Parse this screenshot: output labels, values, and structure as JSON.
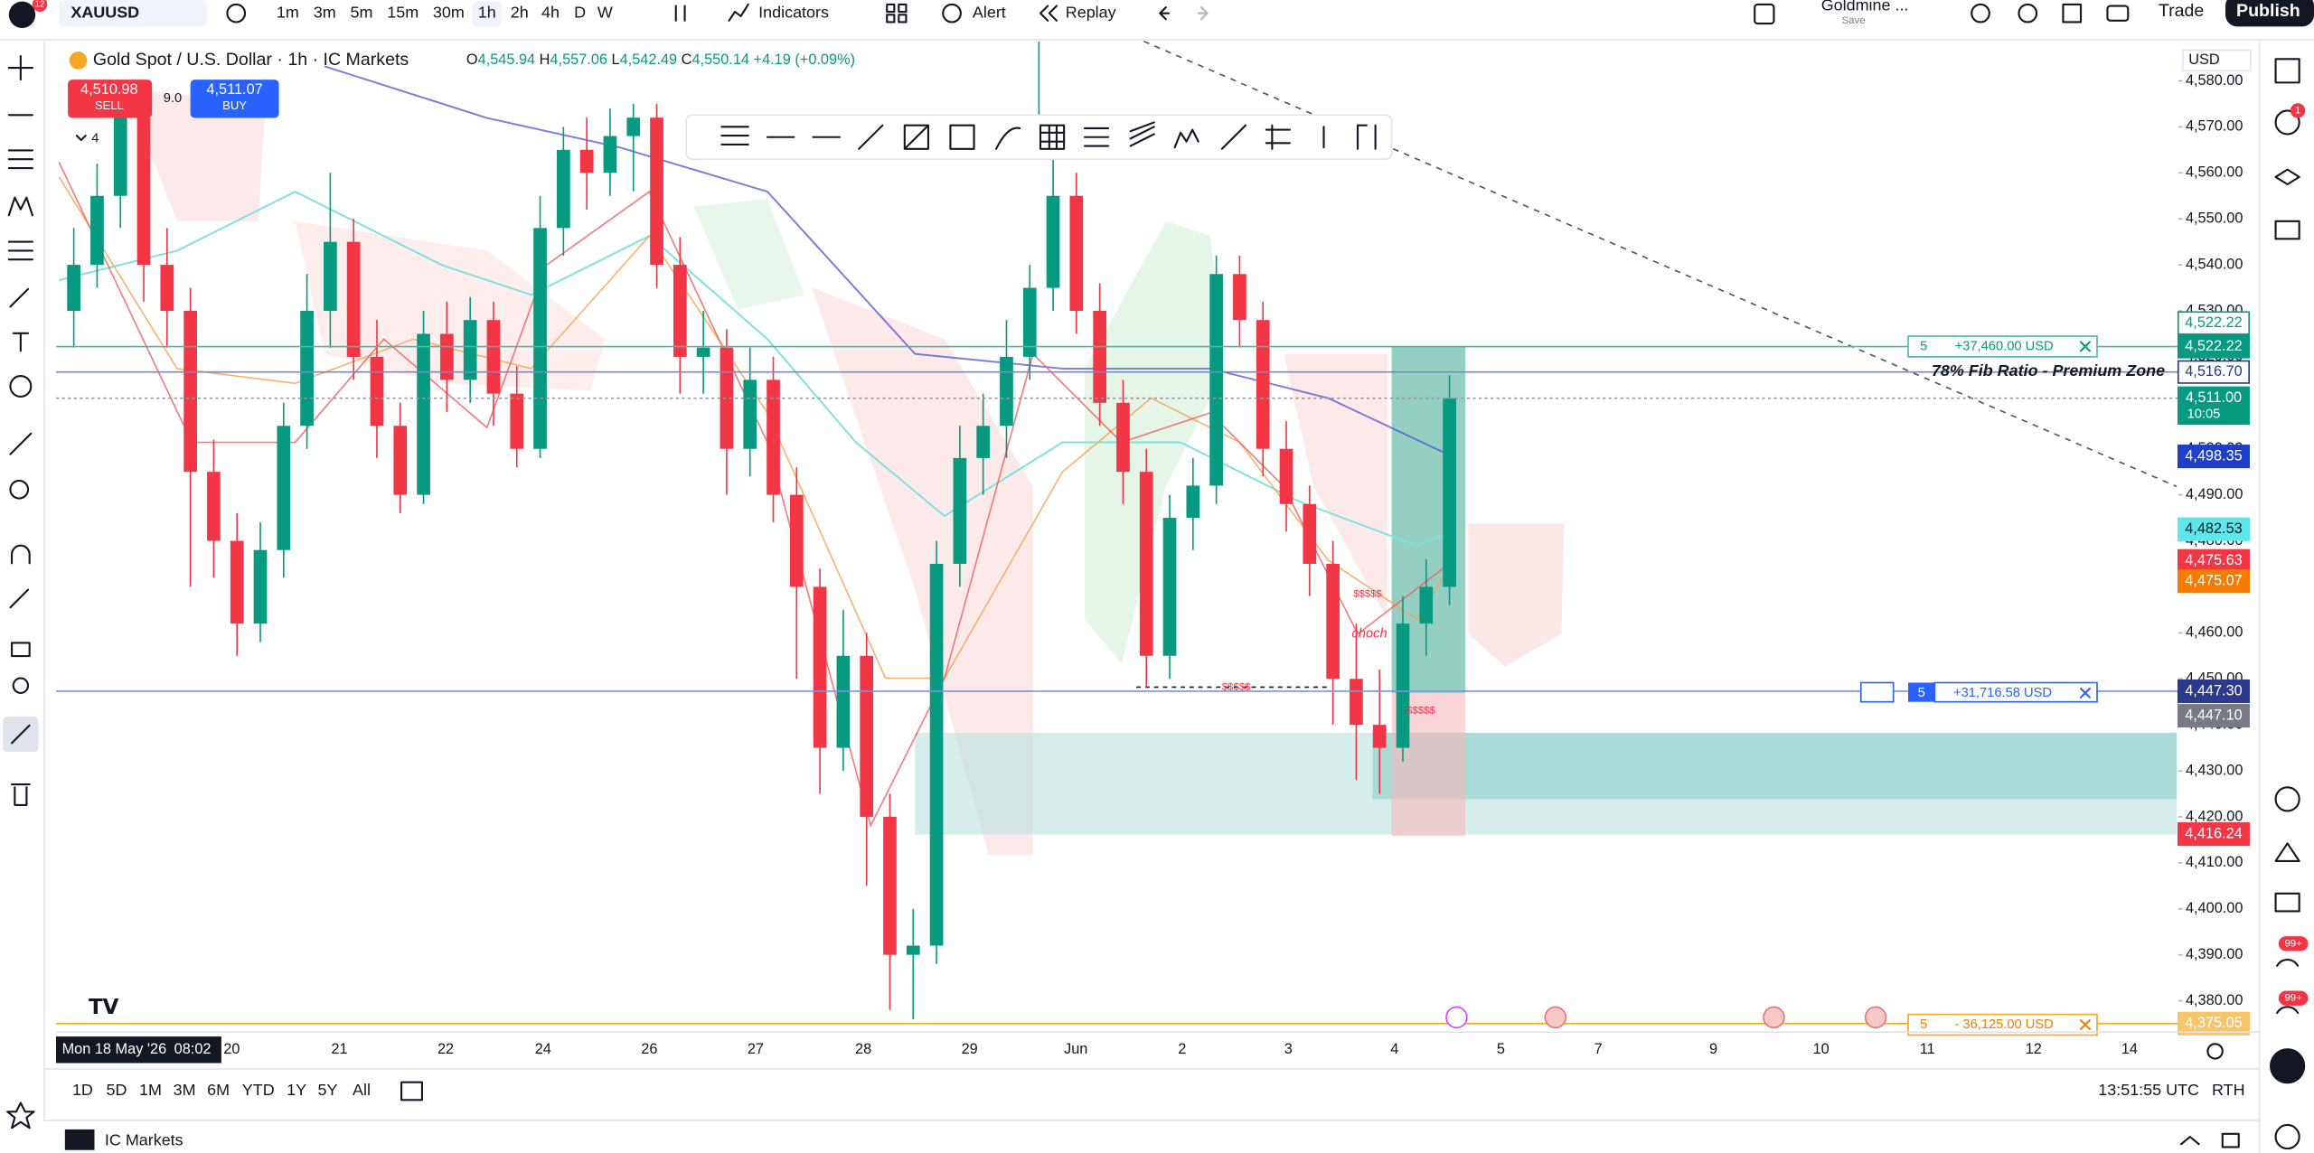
{
  "top_bar": {
    "symbol": "XAUUSD",
    "badge": "12",
    "timeframes": [
      "1m",
      "3m",
      "5m",
      "15m",
      "30m",
      "1h",
      "2h",
      "4h",
      "D",
      "W"
    ],
    "indicators": "Indicators",
    "alert": "Alert",
    "replay": "Replay",
    "account": "Goldmine ...",
    "save": "Save",
    "trade": "Trade",
    "publish": "Publish"
  },
  "legend": {
    "title": "Gold Spot / U.S. Dollar · 1h · IC Markets",
    "ohlc": [
      {
        "key": "O",
        "value": "4,545.94"
      },
      {
        "key": "H",
        "value": "4,557.06"
      },
      {
        "key": "L",
        "value": "4,542.49"
      },
      {
        "key": "C",
        "value": "4,550.14"
      }
    ],
    "change": "+4.19 (+0.09%)",
    "sell_price": "4,510.98",
    "sell": "SELL",
    "spread": "9.0",
    "buy_price": "4,511.07",
    "buy": "BUY",
    "indicator_count": "4"
  },
  "chart_data": {
    "type": "candlestick",
    "up_color": "#089981",
    "down_color": "#f23645",
    "candles": [
      [
        4530,
        4548,
        4522,
        4540
      ],
      [
        4540,
        4562,
        4535,
        4555
      ],
      [
        4555,
        4578,
        4548,
        4572
      ],
      [
        4572,
        4575,
        4532,
        4540
      ],
      [
        4540,
        4548,
        4522,
        4530
      ],
      [
        4530,
        4535,
        4470,
        4495
      ],
      [
        4495,
        4502,
        4472,
        4480
      ],
      [
        4480,
        4486,
        4455,
        4462
      ],
      [
        4462,
        4484,
        4458,
        4478
      ],
      [
        4478,
        4510,
        4472,
        4505
      ],
      [
        4505,
        4538,
        4500,
        4530
      ],
      [
        4530,
        4560,
        4522,
        4545
      ],
      [
        4545,
        4550,
        4515,
        4520
      ],
      [
        4520,
        4528,
        4498,
        4505
      ],
      [
        4505,
        4510,
        4486,
        4490
      ],
      [
        4490,
        4530,
        4488,
        4525
      ],
      [
        4525,
        4532,
        4508,
        4515
      ],
      [
        4515,
        4533,
        4510,
        4528
      ],
      [
        4528,
        4532,
        4505,
        4512
      ],
      [
        4512,
        4518,
        4496,
        4500
      ],
      [
        4500,
        4555,
        4498,
        4548
      ],
      [
        4548,
        4570,
        4542,
        4565
      ],
      [
        4565,
        4572,
        4552,
        4560
      ],
      [
        4560,
        4574,
        4555,
        4568
      ],
      [
        4568,
        4575,
        4556,
        4572
      ],
      [
        4572,
        4575,
        4535,
        4540
      ],
      [
        4540,
        4546,
        4512,
        4520
      ],
      [
        4520,
        4530,
        4512,
        4522
      ],
      [
        4522,
        4526,
        4490,
        4500
      ],
      [
        4500,
        4522,
        4494,
        4515
      ],
      [
        4515,
        4520,
        4484,
        4490
      ],
      [
        4490,
        4496,
        4450,
        4470
      ],
      [
        4470,
        4474,
        4425,
        4435
      ],
      [
        4435,
        4465,
        4430,
        4455
      ],
      [
        4455,
        4460,
        4405,
        4420
      ],
      [
        4420,
        4425,
        4378,
        4390
      ],
      [
        4390,
        4400,
        4376,
        4392
      ],
      [
        4392,
        4480,
        4388,
        4475
      ],
      [
        4475,
        4505,
        4470,
        4498
      ],
      [
        4498,
        4512,
        4490,
        4505
      ],
      [
        4505,
        4528,
        4498,
        4520
      ],
      [
        4520,
        4540,
        4515,
        4535
      ],
      [
        4535,
        4568,
        4530,
        4555
      ],
      [
        4555,
        4560,
        4525,
        4530
      ],
      [
        4530,
        4536,
        4505,
        4510
      ],
      [
        4510,
        4515,
        4488,
        4495
      ],
      [
        4495,
        4500,
        4448,
        4455
      ],
      [
        4455,
        4490,
        4450,
        4485
      ],
      [
        4485,
        4498,
        4478,
        4492
      ],
      [
        4492,
        4542,
        4488,
        4538
      ],
      [
        4538,
        4542,
        4522,
        4528
      ],
      [
        4528,
        4532,
        4494,
        4500
      ],
      [
        4500,
        4506,
        4482,
        4488
      ],
      [
        4488,
        4492,
        4468,
        4475
      ],
      [
        4475,
        4480,
        4440,
        4450
      ],
      [
        4450,
        4462,
        4428,
        4440
      ],
      [
        4440,
        4452,
        4425,
        4435
      ],
      [
        4435,
        4468,
        4432,
        4462
      ],
      [
        4462,
        4476,
        4455,
        4470
      ],
      [
        4470,
        4516,
        4466,
        4511
      ]
    ],
    "ylim": [
      4373.2,
      4588.6
    ],
    "yticks": [
      {
        "value": 4580,
        "label": "4,580.00"
      },
      {
        "value": 4570,
        "label": "4,570.00"
      },
      {
        "value": 4560,
        "label": "4,560.00"
      },
      {
        "value": 4550,
        "label": "4,550.00"
      },
      {
        "value": 4540,
        "label": "4,540.00"
      },
      {
        "value": 4530,
        "label": "4,530.00"
      },
      {
        "value": 4520,
        "label": "4,520.00"
      },
      {
        "value": 4510,
        "label": "4,510.00"
      },
      {
        "value": 4500,
        "label": "4,500.00"
      },
      {
        "value": 4490,
        "label": "4,490.00"
      },
      {
        "value": 4480,
        "label": "4,480.00"
      },
      {
        "value": 4470,
        "label": "4,470.00"
      },
      {
        "value": 4460,
        "label": "4,460.00"
      },
      {
        "value": 4450,
        "label": "4,450.00"
      },
      {
        "value": 4440,
        "label": "4,440.00"
      },
      {
        "value": 4430,
        "label": "4,430.00"
      },
      {
        "value": 4420,
        "label": "4,420.00"
      },
      {
        "value": 4410,
        "label": "4,410.00"
      },
      {
        "value": 4400,
        "label": "4,400.00"
      },
      {
        "value": 4390,
        "label": "4,390.00"
      },
      {
        "value": 4380,
        "label": "4,380.00"
      }
    ],
    "currency": "USD",
    "price_labels": [
      {
        "value": 4522.22,
        "label": "4,522.22",
        "bg": "#ffffff",
        "fg": "#089981"
      },
      {
        "value": 4522.22,
        "label": "4,522.22",
        "bg": "#089981",
        "fg": "#ffffff",
        "line": "solid",
        "line_color": "#4db6ac"
      },
      {
        "value": 4516.7,
        "label": "4,516.70",
        "bg": "#ffffff",
        "fg": "#1e3a8a",
        "line": "solid",
        "line_color": "#7986cb"
      },
      {
        "value": 4511.0,
        "label": "4,511.00",
        "bg": "#089981",
        "fg": "#ffffff",
        "line": "dotted",
        "line_color": "#9598a1"
      },
      {
        "value": 4498.35,
        "label": "4,498.35",
        "bg": "#1e40c8",
        "fg": "#ffffff"
      },
      {
        "value": 4482.53,
        "label": "4,482.53",
        "bg": "#5ee7ea",
        "fg": "#131722"
      },
      {
        "value": 4475.63,
        "label": "4,475.63",
        "bg": "#f23645",
        "fg": "#ffffff"
      },
      {
        "value": 4475.07,
        "label": "4,475.07",
        "bg": "#f57c00",
        "fg": "#ffffff"
      },
      {
        "value": 4447.3,
        "label": "4,447.30",
        "bg": "#2b3a8c",
        "fg": "#ffffff",
        "line": "solid",
        "line_color": "#7b8fe0"
      },
      {
        "value": 4447.1,
        "label": "4,447.10",
        "bg": "#787b86",
        "fg": "#ffffff"
      },
      {
        "value": 4416.24,
        "label": "4,416.24",
        "bg": "#f23645",
        "fg": "#ffffff"
      },
      {
        "value": 4375.05,
        "label": "4,375.05",
        "bg": "#f9c56b",
        "fg": "#ffffff",
        "line": "solid",
        "line_color": "#f5a623"
      }
    ],
    "countdown": "10:05",
    "x_labels": [
      "20",
      "21",
      "22",
      "24",
      "26",
      "27",
      "28",
      "29",
      "Jun",
      "2",
      "3",
      "4",
      "5",
      "7",
      "9",
      "10",
      "11",
      "12",
      "14"
    ],
    "crosshair_date": "Mon 18 May '26",
    "crosshair_time": "08:02",
    "annotations": {
      "fib": "78% Fib Ratio - Premium Zone",
      "position_1": {
        "qty": "5",
        "pnl": "+37,460.00 USD"
      },
      "position_2": {
        "qty": "5",
        "pnl": "+31,716.58 USD"
      },
      "position_3": {
        "qty": "5",
        "pnl": "- 36,125.00 USD"
      },
      "choch": "choch",
      "liquidity": [
        "$$$$$",
        "$$$$$",
        "$$$$$"
      ]
    }
  },
  "bottom_bar": {
    "ranges": [
      "1D",
      "5D",
      "1M",
      "3M",
      "6M",
      "YTD",
      "1Y",
      "5Y",
      "All"
    ],
    "clock": "13:51:55 UTC",
    "session": "RTH"
  },
  "status_bar": {
    "broker": "IC Markets"
  },
  "right_sidebar": {
    "badges": [
      "1",
      "99+",
      "99+"
    ]
  }
}
